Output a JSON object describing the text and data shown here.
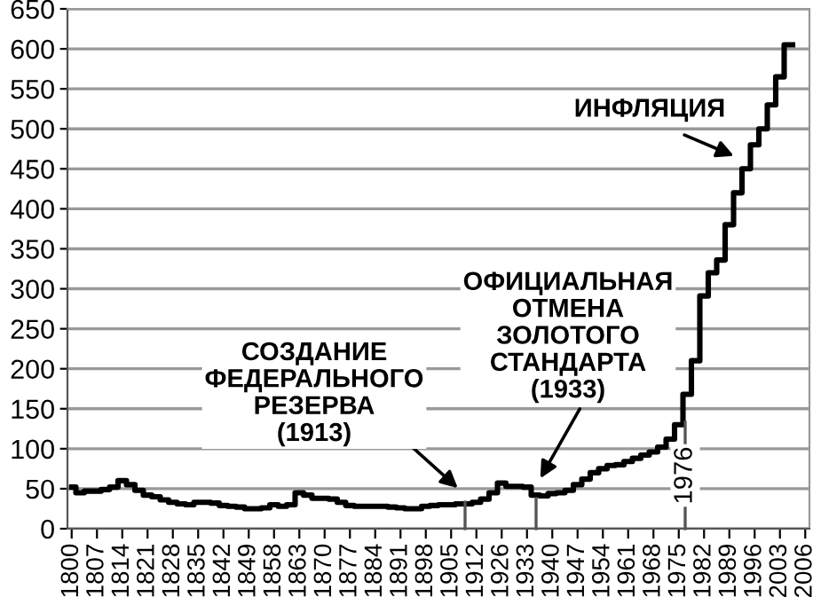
{
  "chart_data": {
    "type": "step",
    "categories": [
      "1800",
      null,
      null,
      "1807",
      null,
      null,
      "1814",
      null,
      null,
      "1821",
      null,
      null,
      "1828",
      null,
      null,
      "1835",
      null,
      null,
      "1842",
      null,
      null,
      "1849",
      null,
      null,
      "1858",
      null,
      null,
      "1863",
      null,
      null,
      "1870",
      null,
      null,
      "1877",
      null,
      null,
      "1884",
      null,
      null,
      "1891",
      null,
      null,
      "1898",
      null,
      null,
      "1905",
      null,
      null,
      "1912",
      null,
      null,
      "1926",
      null,
      null,
      "1933",
      null,
      null,
      "1940",
      null,
      null,
      "1947",
      null,
      null,
      "1954",
      null,
      null,
      "1961",
      null,
      null,
      "1968",
      null,
      null,
      "1975",
      null,
      null,
      "1982",
      null,
      null,
      "1989",
      null,
      null,
      "1996",
      null,
      null,
      "2003",
      null,
      null,
      "2006"
    ],
    "series": [
      {
        "color": "#000000",
        "values": [
          52,
          45,
          47,
          47,
          49,
          52,
          60,
          55,
          48,
          42,
          40,
          36,
          33,
          31,
          30,
          33,
          33,
          32,
          29,
          28,
          27,
          25,
          25,
          26,
          30,
          28,
          30,
          45,
          42,
          38,
          38,
          37,
          33,
          29,
          28,
          28,
          28,
          28,
          27,
          26,
          25,
          25,
          28,
          29,
          30,
          30,
          31,
          31,
          33,
          37,
          45,
          57,
          53,
          53,
          52,
          42,
          41,
          44,
          45,
          48,
          55,
          62,
          70,
          75,
          79,
          80,
          84,
          88,
          92,
          96,
          102,
          112,
          130,
          168,
          210,
          291,
          320,
          336,
          380,
          420,
          450,
          480,
          500,
          530,
          565,
          605,
          null,
          null
        ]
      }
    ],
    "ylim": [
      0,
      650
    ],
    "yticks": [
      0,
      50,
      100,
      150,
      200,
      250,
      300,
      350,
      400,
      450,
      500,
      550,
      600,
      650
    ],
    "grid": "y",
    "line_style": "solid",
    "marker": "none",
    "annotations": [
      "СОЗДАНИЕ\nФЕДЕРАЛЬНОГО\nРЕЗЕРВА\n(1913)",
      "ОФИЦИАЛЬНАЯ\nОТМЕНА\nЗОЛОТОГО\nСТАНДАРТА\n(1933)",
      "ИНФЛЯЦИЯ",
      "1976"
    ]
  }
}
